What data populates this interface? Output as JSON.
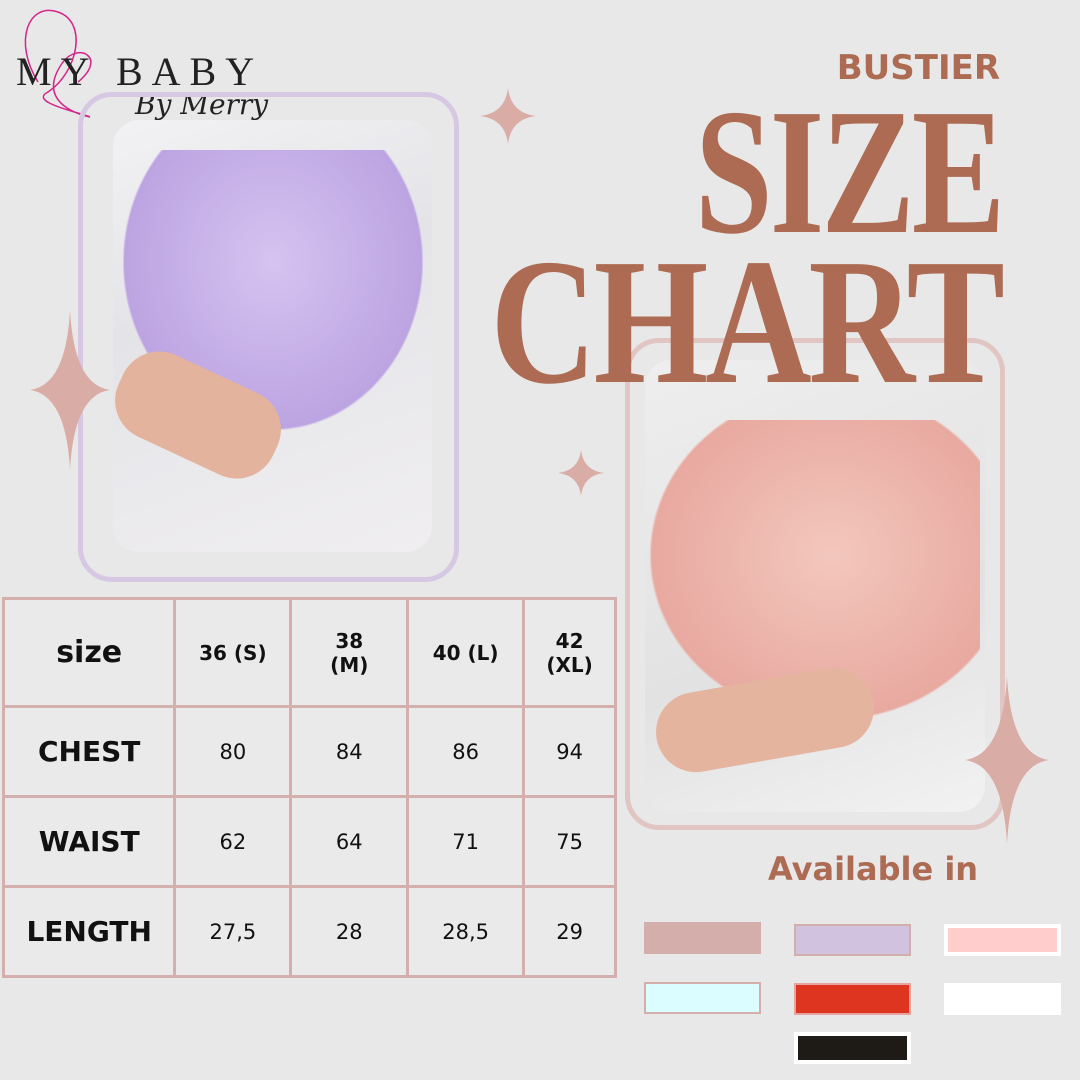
{
  "logo": {
    "main": "MY BABY",
    "sub": "By Merry"
  },
  "title": {
    "kicker": "BUSTIER",
    "line1": "SIZE",
    "line2": "CHART"
  },
  "table": {
    "headers": [
      "size",
      "36 (S)",
      "38 (M)",
      "40 (L)",
      "42 (XL)"
    ],
    "rows": [
      {
        "label": "CHEST",
        "values": [
          "80",
          "84",
          "86",
          "94"
        ]
      },
      {
        "label": "WAIST",
        "values": [
          "62",
          "64",
          "71",
          "75"
        ]
      },
      {
        "label": "LENGTH",
        "values": [
          "27,5",
          "28",
          "28,5",
          "29"
        ]
      }
    ]
  },
  "available": {
    "label": "Available in",
    "colors": [
      "#d4aeab",
      "#d1c3e0",
      "#ffcdcc",
      "#dcfdff",
      "#dd3520",
      "#ffffff",
      "#1e1b17"
    ]
  },
  "accent": "#ac6b52"
}
